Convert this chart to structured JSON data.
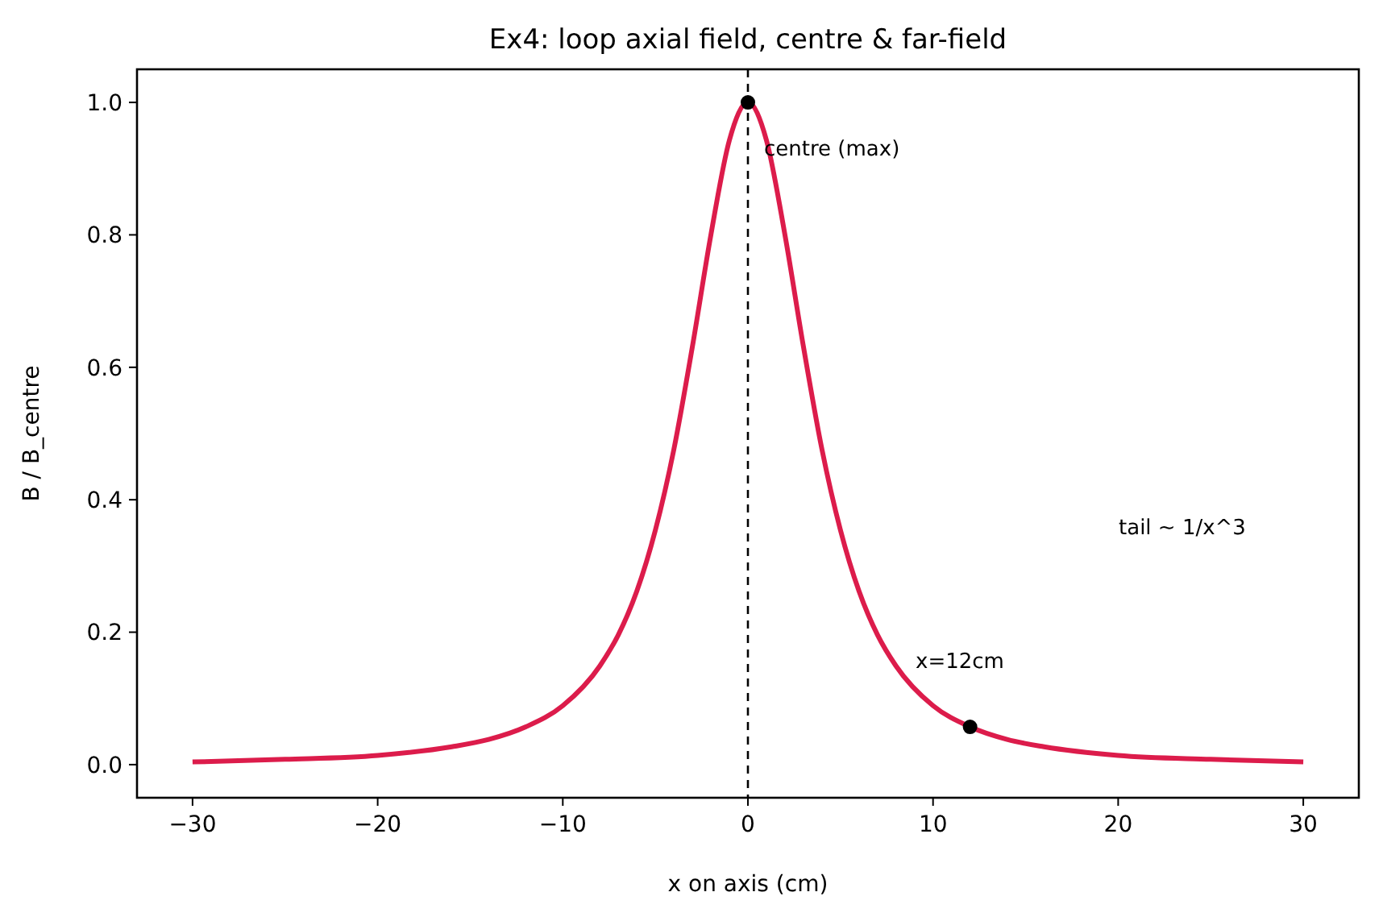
{
  "chart_data": {
    "type": "line",
    "title": "Ex4: loop axial field, centre & far-field",
    "xlabel": "x on axis (cm)",
    "ylabel": "B / B_centre",
    "xlim": [
      -33,
      33
    ],
    "ylim": [
      -0.05,
      1.05
    ],
    "xticks": [
      -30,
      -20,
      -10,
      0,
      10,
      20,
      30
    ],
    "yticks": [
      {
        "value": 0,
        "label": "0.0"
      },
      0.2,
      0.4,
      0.6,
      0.8,
      {
        "value": 1,
        "label": "1.0"
      }
    ],
    "grid": false,
    "series": [
      {
        "type": "line",
        "color": "#dc1c4b",
        "x": [
          -30,
          -25,
          -20,
          -16,
          -14,
          -12,
          -10,
          -8,
          -7,
          -6,
          -5,
          -4,
          -3,
          -2,
          -1,
          0,
          1,
          2,
          3,
          4,
          5,
          6,
          7,
          8,
          10,
          12,
          14,
          16,
          20,
          25,
          30
        ],
        "values": [
          0.004,
          0.008,
          0.014,
          0.027,
          0.038,
          0.057,
          0.089,
          0.149,
          0.196,
          0.262,
          0.354,
          0.476,
          0.631,
          0.8,
          0.943,
          1,
          0.943,
          0.8,
          0.631,
          0.476,
          0.354,
          0.262,
          0.196,
          0.149,
          0.089,
          0.057,
          0.038,
          0.027,
          0.014,
          0.008,
          0.004
        ]
      },
      {
        "type": "scatter",
        "color": "#000000",
        "marker": "circle",
        "x": [
          0,
          12
        ],
        "values": [
          1,
          0.057
        ]
      }
    ],
    "ref_lines": [
      {
        "axis": "x",
        "value": 0,
        "color": "#000000",
        "line_style": "dashed"
      }
    ],
    "annotations": [
      "centre (max)",
      "x=12cm",
      "tail ~ 1/x^3"
    ]
  }
}
